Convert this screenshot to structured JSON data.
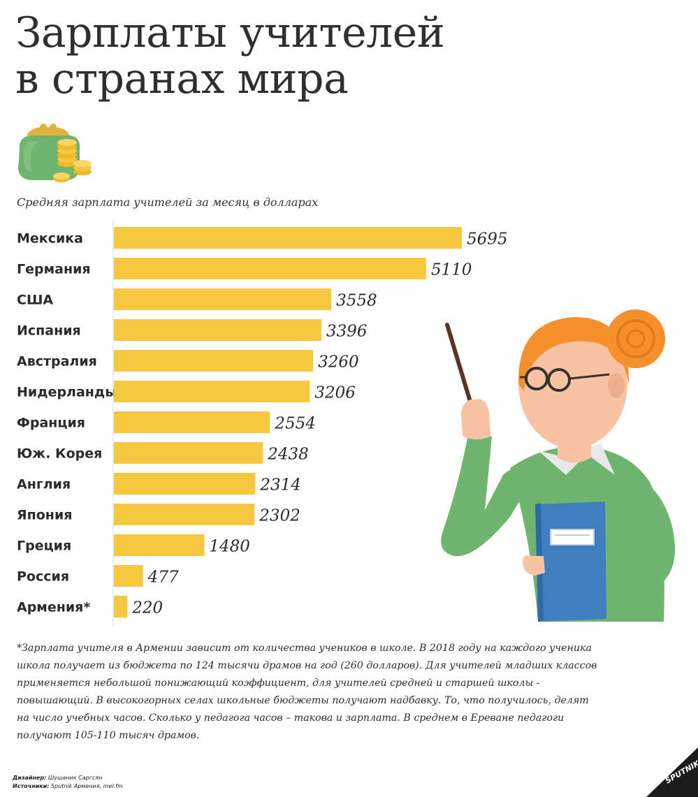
{
  "title_line1": "Зарплаты учителей",
  "title_line2": "в странах мира",
  "subtitle": "Средняя зарплата учителей за месяц в долларах",
  "chart_data": {
    "type": "bar",
    "orientation": "horizontal",
    "categories": [
      "Мексика",
      "Германия",
      "США",
      "Испания",
      "Австралия",
      "Нидерланды",
      "Франция",
      "Юж. Корея",
      "Англия",
      "Япония",
      "Греция",
      "Россия",
      "Армения*"
    ],
    "values": [
      5695,
      5110,
      3558,
      3396,
      3260,
      3206,
      2554,
      2438,
      2314,
      2302,
      1480,
      477,
      220
    ],
    "bar_color": "#f7c73f",
    "grid": false,
    "legend": "none"
  },
  "footnote": "*Зарплата учителя в Армении зависит от количества учеников в школе. В 2018 году на каждого ученика школа получает из бюджета по 124 тысячи драмов на год (260 долларов). Для учителей младших классов применяется небольшой понижающий коэффициент, для учителей средней и старшей школы - повышающий. В высокогорных селах школьные бюджеты получают надбавку. То, что получилось, делят на число учебных часов. Сколько у педагога часов – такова и зарплата. В среднем в Ереване педагоги получают 105-110 тысяч драмов.",
  "credits": {
    "designer_label": "Дизайнер:",
    "designer": "Шушаник Саргсян",
    "sources_label": "Источники:",
    "sources": "Sputnik Армения, mel.fm"
  },
  "logo_text": "SPUTNIK",
  "colors": {
    "bar": "#f7c73f",
    "axis": "#d9d9d9",
    "sweater": "#6fb56f",
    "hair": "#f5902a",
    "book": "#3f7fc0"
  }
}
